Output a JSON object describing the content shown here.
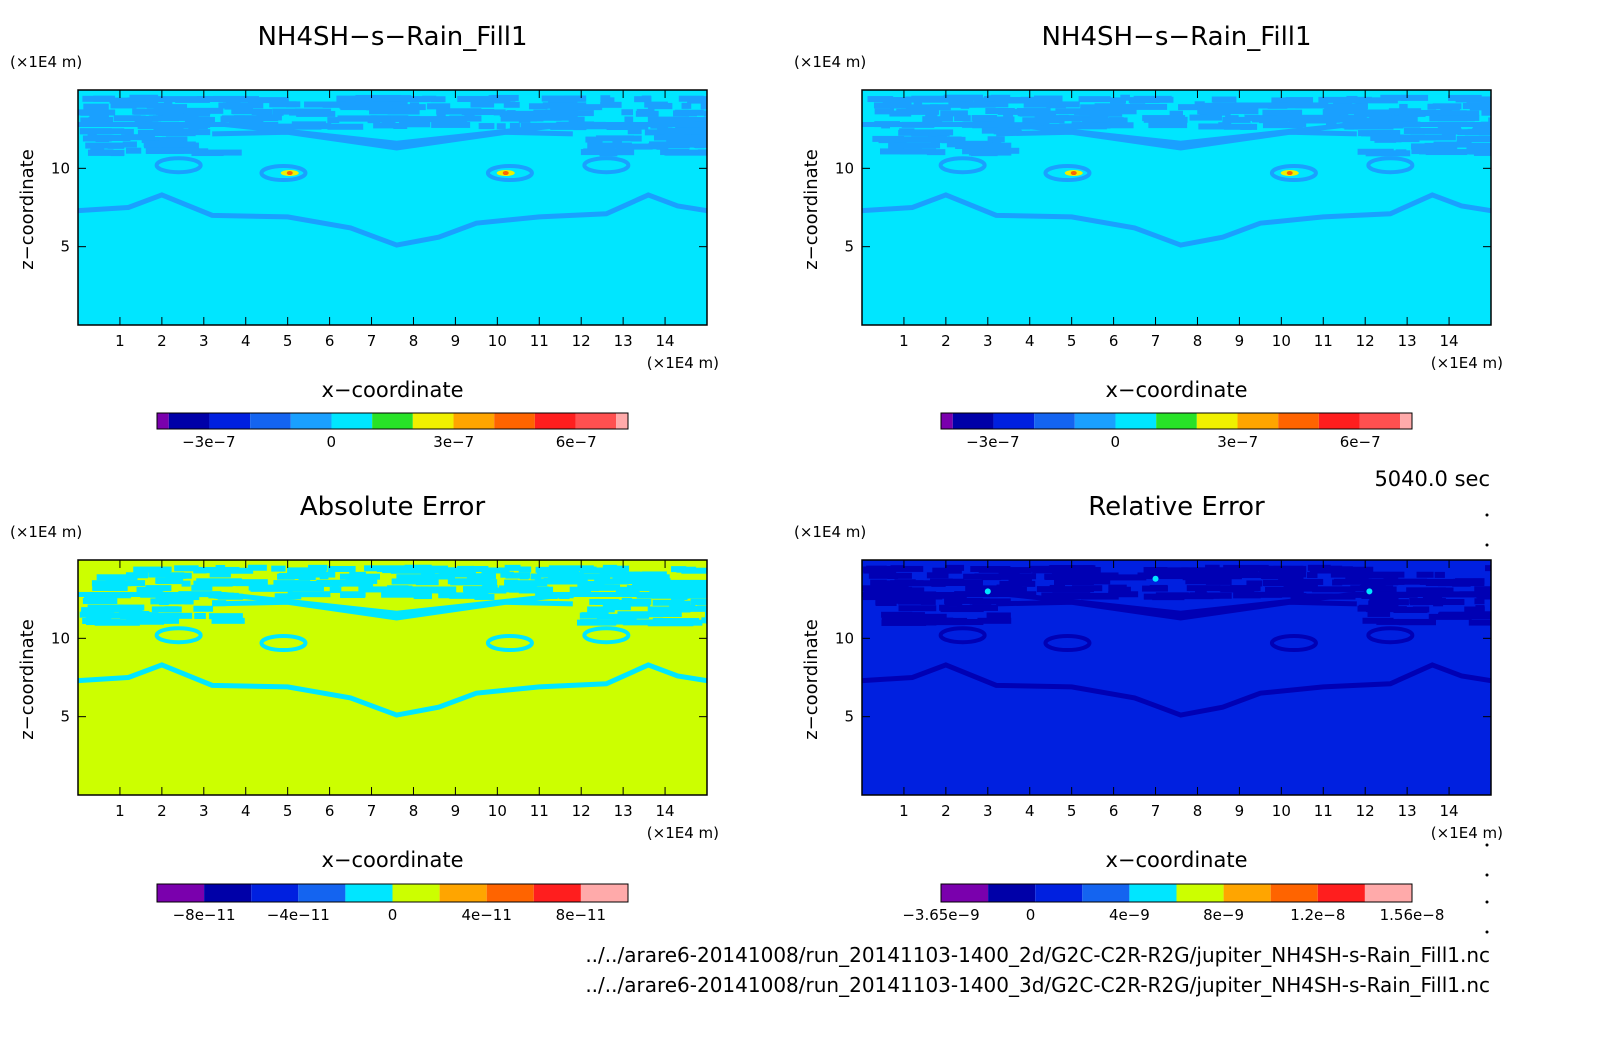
{
  "time_label": "5040.0 sec",
  "file_paths": [
    "../../arare6-20141008/run_20141103-1400_2d/G2C-C2R-R2G/jupiter_NH4SH-s-Rain_Fill1.nc",
    "../../arare6-20141008/run_20141103-1400_3d/G2C-C2R-R2G/jupiter_NH4SH-s-Rain_Fill1.nc"
  ],
  "colors": {
    "palette": [
      "#7a00ad",
      "#0000a8",
      "#0020e0",
      "#1464f0",
      "#1aa0ff",
      "#00e6ff",
      "#28e228",
      "#f0f000",
      "#ffa500",
      "#ff6400",
      "#ff1e1e",
      "#ff5050",
      "#ffaaaa"
    ],
    "background": "#00e6ff",
    "error_field": "#ccff00",
    "rel_field": "#0020e0"
  },
  "chart_data": [
    {
      "type": "heatmap",
      "title": "NH4SH−s−Rain_Fill1",
      "xlabel": "x−coordinate",
      "ylabel": "z−coordinate",
      "x_unit": "(×1E4 m)",
      "y_unit": "(×1E4 m)",
      "xlim": [
        0,
        15
      ],
      "ylim": [
        0,
        15
      ],
      "xticks": [
        "1",
        "2",
        "3",
        "4",
        "5",
        "6",
        "7",
        "8",
        "9",
        "10",
        "11",
        "12",
        "13",
        "14"
      ],
      "yticks": [
        "5",
        "10"
      ],
      "colorbar_ticks": [
        "−3e−7",
        "0",
        "3e−7",
        "6e−7"
      ],
      "dominant_value": "0"
    },
    {
      "type": "heatmap",
      "title": "NH4SH−s−Rain_Fill1",
      "xlabel": "x−coordinate",
      "ylabel": "z−coordinate",
      "x_unit": "(×1E4 m)",
      "y_unit": "(×1E4 m)",
      "xlim": [
        0,
        15
      ],
      "ylim": [
        0,
        15
      ],
      "xticks": [
        "1",
        "2",
        "3",
        "4",
        "5",
        "6",
        "7",
        "8",
        "9",
        "10",
        "11",
        "12",
        "13",
        "14"
      ],
      "yticks": [
        "5",
        "10"
      ],
      "colorbar_ticks": [
        "−3e−7",
        "0",
        "3e−7",
        "6e−7"
      ],
      "dominant_value": "0"
    },
    {
      "type": "heatmap",
      "title": "Absolute Error",
      "xlabel": "x−coordinate",
      "ylabel": "z−coordinate",
      "x_unit": "(×1E4 m)",
      "y_unit": "(×1E4 m)",
      "xlim": [
        0,
        15
      ],
      "ylim": [
        0,
        15
      ],
      "xticks": [
        "1",
        "2",
        "3",
        "4",
        "5",
        "6",
        "7",
        "8",
        "9",
        "10",
        "11",
        "12",
        "13",
        "14"
      ],
      "yticks": [
        "5",
        "10"
      ],
      "colorbar_ticks": [
        "−8e−11",
        "−4e−11",
        "0",
        "4e−11",
        "8e−11"
      ],
      "dominant_value": "0"
    },
    {
      "type": "heatmap",
      "title": "Relative Error",
      "xlabel": "x−coordinate",
      "ylabel": "z−coordinate",
      "x_unit": "(×1E4 m)",
      "y_unit": "(×1E4 m)",
      "xlim": [
        0,
        15
      ],
      "ylim": [
        0,
        15
      ],
      "xticks": [
        "1",
        "2",
        "3",
        "4",
        "5",
        "6",
        "7",
        "8",
        "9",
        "10",
        "11",
        "12",
        "13",
        "14"
      ],
      "yticks": [
        "5",
        "10"
      ],
      "colorbar_ticks": [
        "−3.65e−9",
        "0",
        "4e−9",
        "8e−9",
        "1.2e−8",
        "1.56e−8"
      ],
      "dominant_value": "0"
    }
  ]
}
